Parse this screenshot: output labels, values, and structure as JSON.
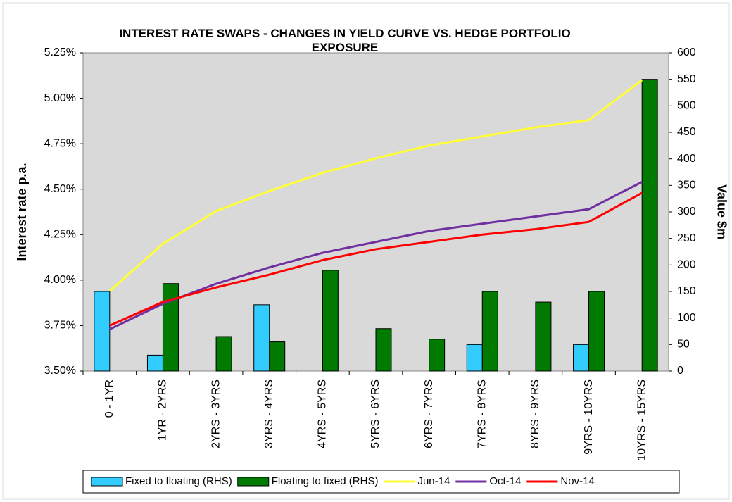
{
  "chart_data": {
    "type": "bar",
    "title": "INTEREST RATE SWAPS - CHANGES IN YIELD CURVE VS. HEDGE PORTFOLIO EXPOSURE",
    "ylabel": "Interest rate p.a.",
    "y2label": "Value $m",
    "categories": [
      "0 - 1YR",
      "1YR - 2YRS",
      "2YRS - 3YRS",
      "3YRS - 4YRS",
      "4YRS - 5YRS",
      "5YRS - 6YRS",
      "6YRS - 7YRS",
      "7YRS - 8YRS",
      "8YRS - 9YRS",
      "9YRS - 10YRS",
      "10YRS - 15YRS"
    ],
    "ylim": [
      3.5,
      5.25
    ],
    "yticks": [
      {
        "value": 3.5,
        "label": "3.50%"
      },
      {
        "value": 3.75,
        "label": "3.75%"
      },
      {
        "value": 4.0,
        "label": "4.00%"
      },
      {
        "value": 4.25,
        "label": "4.25%"
      },
      {
        "value": 4.5,
        "label": "4.50%"
      },
      {
        "value": 4.75,
        "label": "4.75%"
      },
      {
        "value": 5.0,
        "label": "5.00%"
      },
      {
        "value": 5.25,
        "label": "5.25%"
      }
    ],
    "y2lim": [
      0,
      600
    ],
    "y2ticks": [
      0,
      50,
      100,
      150,
      200,
      250,
      300,
      350,
      400,
      450,
      500,
      550,
      600
    ],
    "legend": "bottom",
    "series": [
      {
        "name": "Fixed to floating (RHS)",
        "type": "bar",
        "axis": "y2",
        "color": "#33ccff",
        "values": [
          150,
          30,
          null,
          125,
          null,
          null,
          null,
          50,
          null,
          50,
          null
        ]
      },
      {
        "name": "Floating to fixed (RHS)",
        "type": "bar",
        "axis": "y2",
        "color": "#007a00",
        "values": [
          null,
          165,
          65,
          55,
          190,
          80,
          60,
          150,
          130,
          150,
          550
        ]
      },
      {
        "name": "Jun-14",
        "type": "line",
        "color": "#ffff33",
        "values": [
          3.94,
          4.2,
          4.38,
          4.49,
          4.59,
          4.67,
          4.74,
          4.79,
          4.84,
          4.88,
          5.1
        ]
      },
      {
        "name": "Oct-14",
        "type": "line",
        "color": "#7030a0",
        "values": [
          3.73,
          3.87,
          3.98,
          4.07,
          4.15,
          4.21,
          4.27,
          4.31,
          4.35,
          4.39,
          4.54
        ]
      },
      {
        "name": "Nov-14",
        "type": "line",
        "color": "#ff0000",
        "values": [
          3.75,
          3.88,
          3.96,
          4.03,
          4.11,
          4.17,
          4.21,
          4.25,
          4.28,
          4.32,
          4.48
        ]
      }
    ]
  }
}
